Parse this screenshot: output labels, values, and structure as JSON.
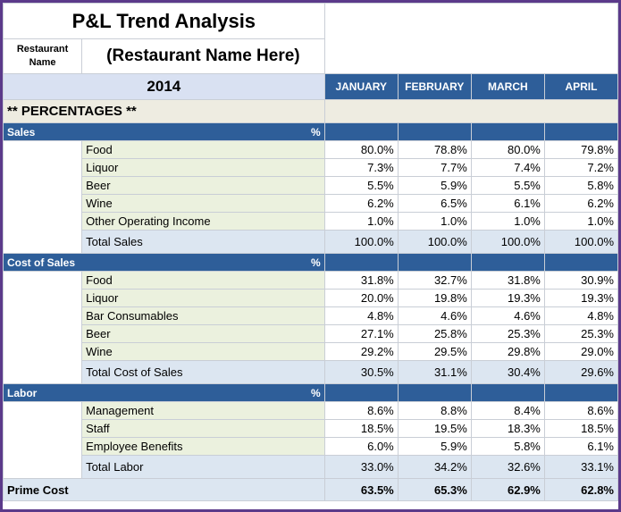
{
  "title": "P&L Trend Analysis",
  "restaurant_label": "Restaurant Name",
  "restaurant_name": "(Restaurant Name Here)",
  "year": "2014",
  "months": [
    "JANUARY",
    "FEBRUARY",
    "MARCH",
    "APRIL"
  ],
  "percentages_heading": "** PERCENTAGES **",
  "sections": [
    {
      "title": "Sales",
      "pct": "%",
      "rows": [
        {
          "label": "Food",
          "values": [
            "80.0%",
            "78.8%",
            "80.0%",
            "79.8%"
          ]
        },
        {
          "label": "Liquor",
          "values": [
            "7.3%",
            "7.7%",
            "7.4%",
            "7.2%"
          ]
        },
        {
          "label": "Beer",
          "values": [
            "5.5%",
            "5.9%",
            "5.5%",
            "5.8%"
          ]
        },
        {
          "label": "Wine",
          "values": [
            "6.2%",
            "6.5%",
            "6.1%",
            "6.2%"
          ]
        },
        {
          "label": "Other Operating Income",
          "values": [
            "1.0%",
            "1.0%",
            "1.0%",
            "1.0%"
          ]
        }
      ],
      "total": {
        "label": "Total Sales",
        "values": [
          "100.0%",
          "100.0%",
          "100.0%",
          "100.0%"
        ]
      }
    },
    {
      "title": "Cost of Sales",
      "pct": "%",
      "rows": [
        {
          "label": "Food",
          "values": [
            "31.8%",
            "32.7%",
            "31.8%",
            "30.9%"
          ]
        },
        {
          "label": "Liquor",
          "values": [
            "20.0%",
            "19.8%",
            "19.3%",
            "19.3%"
          ]
        },
        {
          "label": "Bar Consumables",
          "values": [
            "4.8%",
            "4.6%",
            "4.6%",
            "4.8%"
          ]
        },
        {
          "label": "Beer",
          "values": [
            "27.1%",
            "25.8%",
            "25.3%",
            "25.3%"
          ]
        },
        {
          "label": "Wine",
          "values": [
            "29.2%",
            "29.5%",
            "29.8%",
            "29.0%"
          ]
        }
      ],
      "total": {
        "label": "Total Cost of Sales",
        "values": [
          "30.5%",
          "31.1%",
          "30.4%",
          "29.6%"
        ]
      }
    },
    {
      "title": "Labor",
      "pct": "%",
      "rows": [
        {
          "label": "Management",
          "values": [
            "8.6%",
            "8.8%",
            "8.4%",
            "8.6%"
          ]
        },
        {
          "label": "Staff",
          "values": [
            "18.5%",
            "19.5%",
            "18.3%",
            "18.5%"
          ]
        },
        {
          "label": "Employee Benefits",
          "values": [
            "6.0%",
            "5.9%",
            "5.8%",
            "6.1%"
          ]
        }
      ],
      "total": {
        "label": "Total Labor",
        "values": [
          "33.0%",
          "34.2%",
          "32.6%",
          "33.1%"
        ]
      }
    }
  ],
  "prime_cost": {
    "label": "Prime Cost",
    "values": [
      "63.5%",
      "65.3%",
      "62.9%",
      "62.8%"
    ]
  }
}
